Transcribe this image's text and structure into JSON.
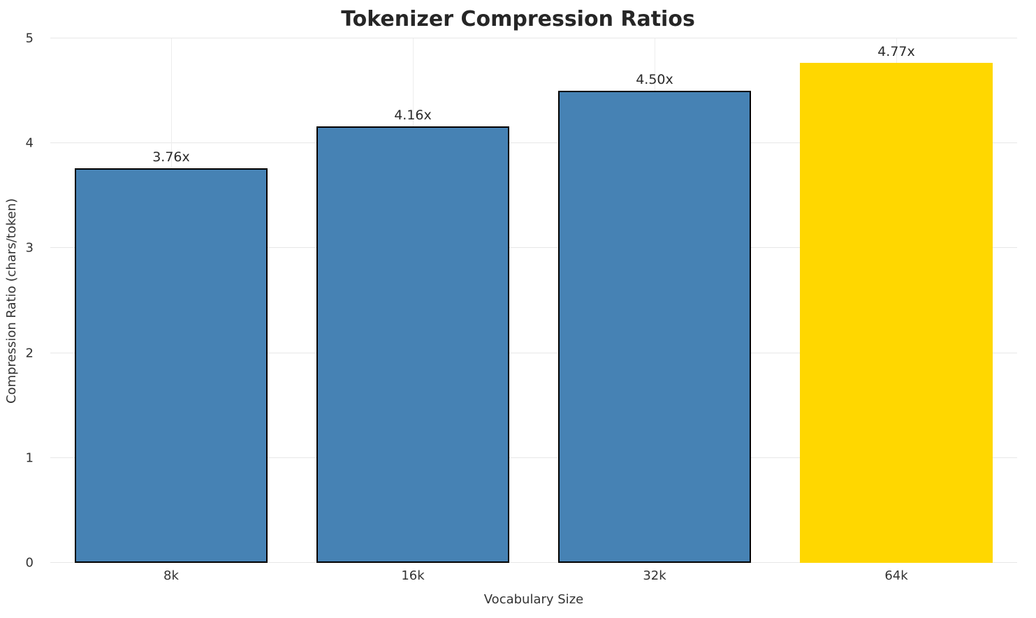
{
  "chart_data": {
    "type": "bar",
    "title": "Tokenizer Compression Ratios",
    "xlabel": "Vocabulary Size",
    "ylabel": "Compression Ratio (chars/token)",
    "categories": [
      "8k",
      "16k",
      "32k",
      "64k"
    ],
    "values": [
      3.76,
      4.16,
      4.5,
      4.77
    ],
    "value_labels": [
      "3.76x",
      "4.16x",
      "4.50x",
      "4.77x"
    ],
    "ylim": [
      0,
      5
    ],
    "yticks": [
      0,
      1,
      2,
      3,
      4,
      5
    ],
    "grid": true,
    "legend": "none",
    "bar_colors": [
      "#4682B4",
      "#4682B4",
      "#4682B4",
      "#FFD700"
    ],
    "bar_edge_colors": [
      "#000000",
      "#000000",
      "#000000",
      "#FFD700"
    ],
    "grid_color": "#e7e7e7",
    "background_color": "#ffffff"
  }
}
